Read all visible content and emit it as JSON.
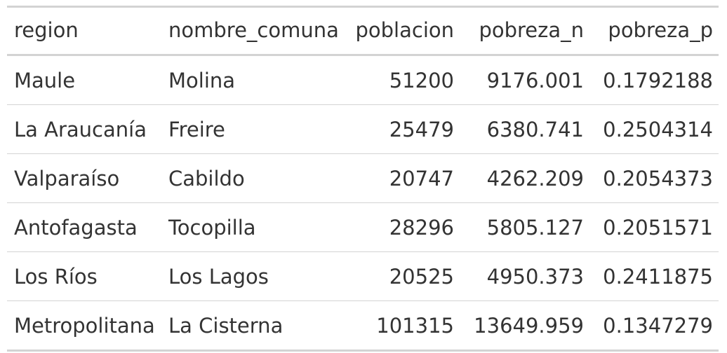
{
  "chart_data": {
    "type": "table",
    "columns": [
      {
        "key": "region",
        "label": "region",
        "align": "left"
      },
      {
        "key": "nombre_comuna",
        "label": "nombre_comuna",
        "align": "left"
      },
      {
        "key": "poblacion",
        "label": "poblacion",
        "align": "right"
      },
      {
        "key": "pobreza_n",
        "label": "pobreza_n",
        "align": "right"
      },
      {
        "key": "pobreza_p",
        "label": "pobreza_p",
        "align": "right"
      }
    ],
    "rows": [
      {
        "region": "Maule",
        "nombre_comuna": "Molina",
        "poblacion": "51200",
        "pobreza_n": "9176.001",
        "pobreza_p": "0.1792188"
      },
      {
        "region": "La Araucanía",
        "nombre_comuna": "Freire",
        "poblacion": "25479",
        "pobreza_n": "6380.741",
        "pobreza_p": "0.2504314"
      },
      {
        "region": "Valparaíso",
        "nombre_comuna": "Cabildo",
        "poblacion": "20747",
        "pobreza_n": "4262.209",
        "pobreza_p": "0.2054373"
      },
      {
        "region": "Antofagasta",
        "nombre_comuna": "Tocopilla",
        "poblacion": "28296",
        "pobreza_n": "5805.127",
        "pobreza_p": "0.2051571"
      },
      {
        "region": "Los Ríos",
        "nombre_comuna": "Los Lagos",
        "poblacion": "20525",
        "pobreza_n": "4950.373",
        "pobreza_p": "0.2411875"
      },
      {
        "region": "Metropolitana",
        "nombre_comuna": "La Cisterna",
        "poblacion": "101315",
        "pobreza_n": "13649.959",
        "pobreza_p": "0.1347279"
      }
    ]
  },
  "colors": {
    "text": "#333333",
    "rule": "#d3d3d3",
    "background": "#ffffff"
  }
}
